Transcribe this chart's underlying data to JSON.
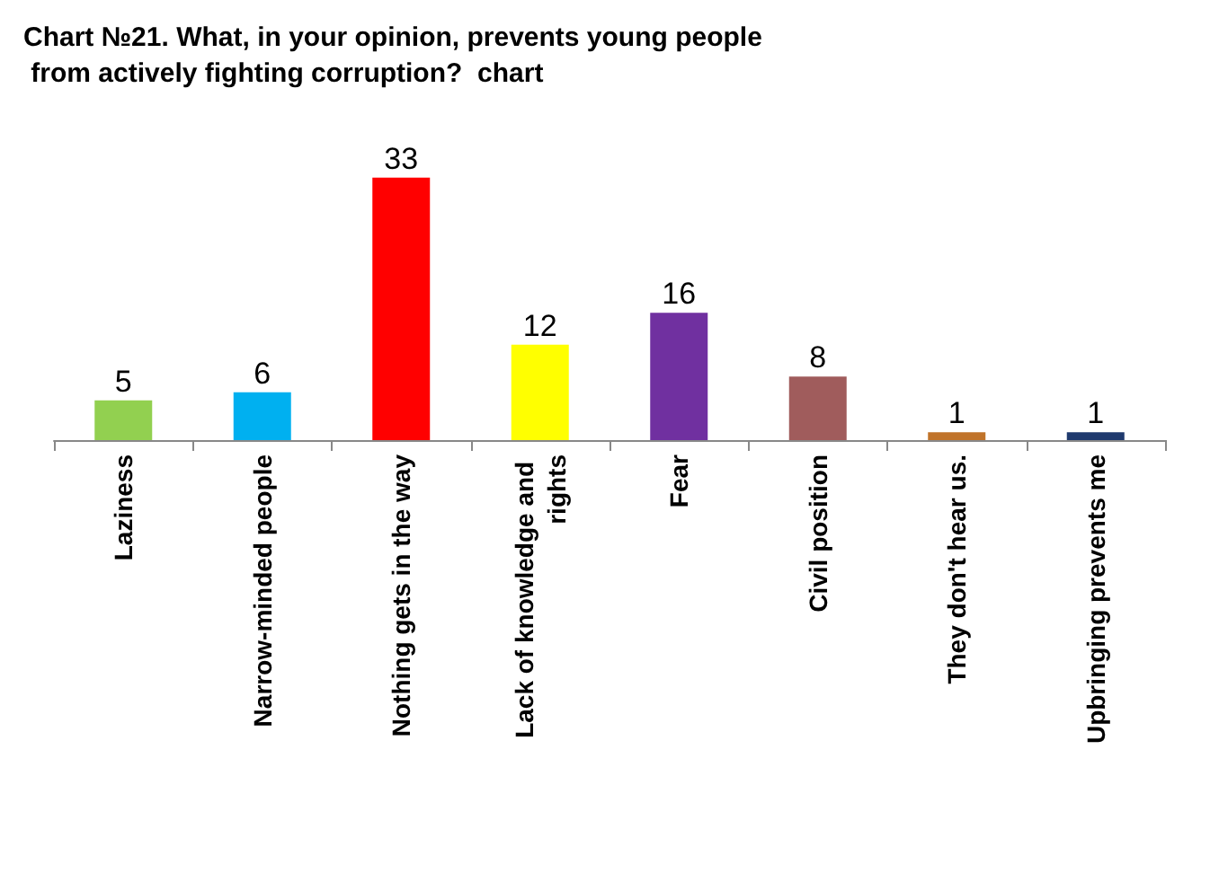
{
  "chart_data": {
    "type": "bar",
    "title": "Chart №21. What, in your opinion, prevents young people from actively fighting corruption?  chart",
    "categories": [
      "Laziness",
      "Narrow-minded people",
      "Nothing gets in the way",
      "Lack of knowledge and rights",
      "Fear",
      "Civil position",
      "They don't hear us.",
      "Upbringing prevents me"
    ],
    "values": [
      5,
      6,
      33,
      12,
      16,
      8,
      1,
      1
    ],
    "colors": [
      "#92d050",
      "#00b0f0",
      "#ff0000",
      "#ffff00",
      "#7030a0",
      "#a05c5c",
      "#c0732a",
      "#1f3a6e"
    ],
    "data_labels": true
  }
}
